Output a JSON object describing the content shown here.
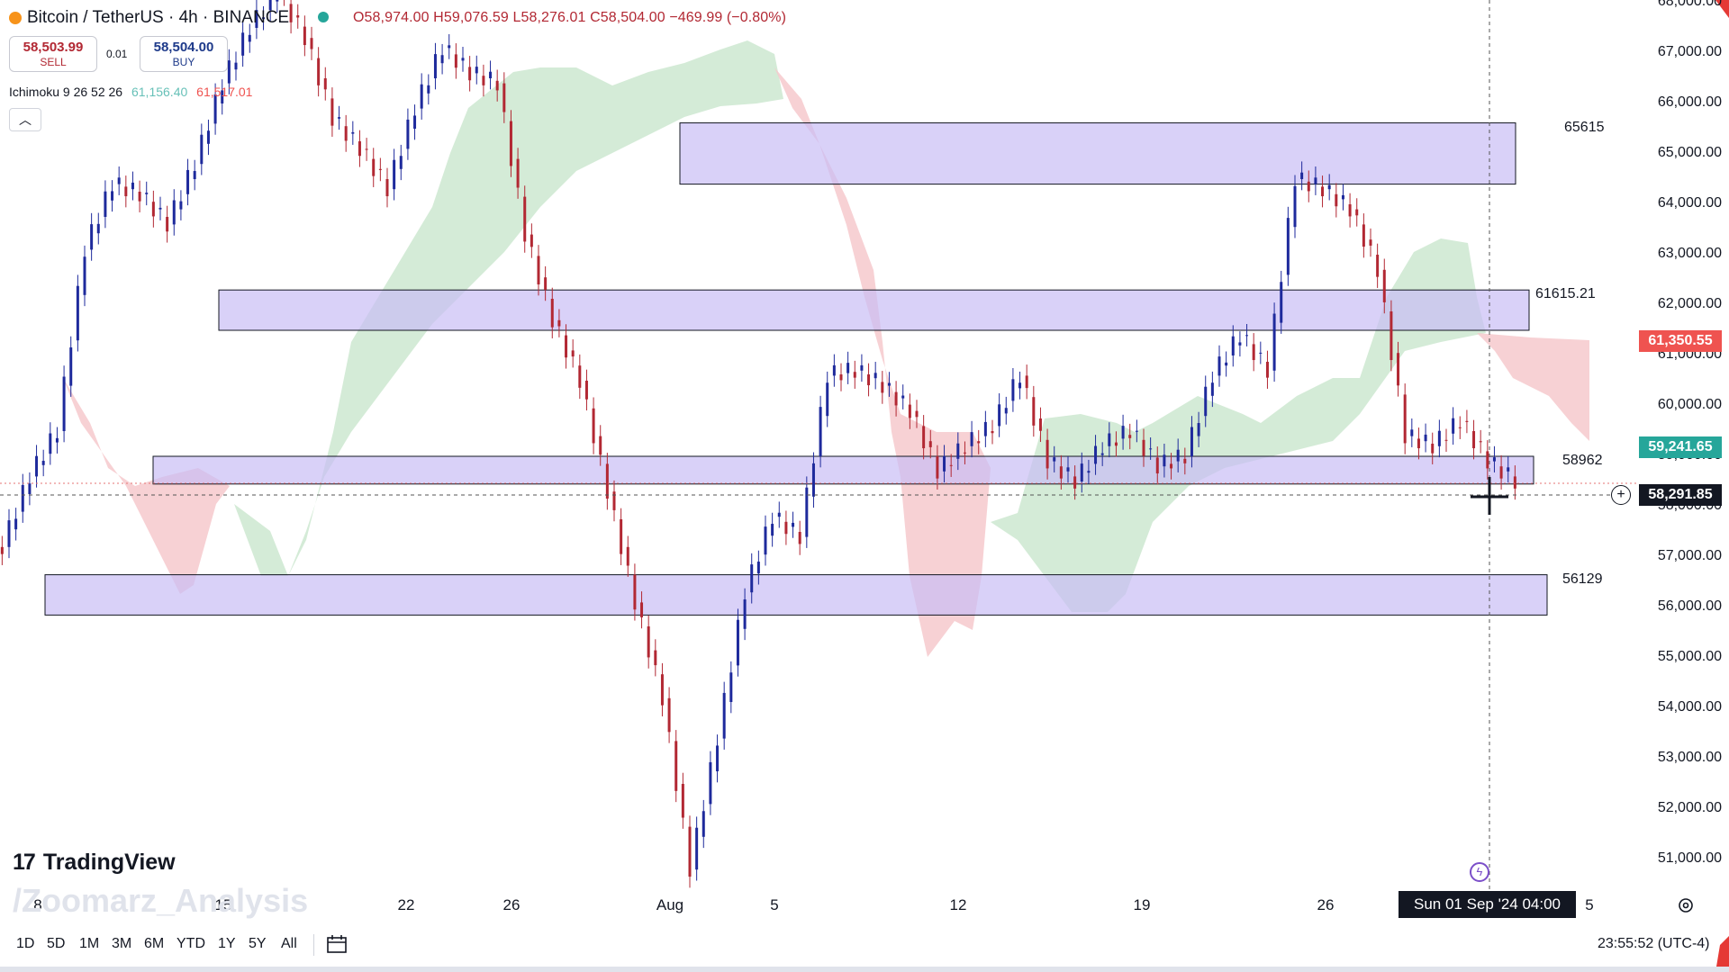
{
  "header": {
    "symbol": "Bitcoin / TetherUS · 4h · BINANCE",
    "ohlc": "O58,974.00 H59,076.59 L58,276.01 C58,504.00 −469.99 (−0.80%)"
  },
  "trade": {
    "sell_price": "58,503.99",
    "sell_label": "SELL",
    "spread": "0.01",
    "buy_price": "58,504.00",
    "buy_label": "BUY"
  },
  "indicator": {
    "name": "Ichimoku 9 26 52 26",
    "value1": "61,156.40",
    "value2": "61,517.01"
  },
  "price_axis": {
    "ticks": [
      "68,000.00",
      "67,000.00",
      "66,000.00",
      "65,000.00",
      "64,000.00",
      "63,000.00",
      "62,000.00",
      "61,000.00",
      "60,000.00",
      "59,000.00",
      "58,000.00",
      "57,000.00",
      "56,000.00",
      "55,000.00",
      "54,000.00",
      "53,000.00",
      "52,000.00",
      "51,000.00"
    ],
    "labels": [
      {
        "text": "61,350.55",
        "color": "#ef5350"
      },
      {
        "text": "59,241.65",
        "color": "#26a69a"
      },
      {
        "text": "58,291.85",
        "color": "#131722"
      }
    ]
  },
  "time_axis": {
    "ticks": [
      "8",
      "15",
      "22",
      "26",
      "Aug",
      "5",
      "12",
      "19",
      "26",
      "5"
    ],
    "crosshair_label": "Sun 01 Sep '24   04:00"
  },
  "zones": [
    {
      "label": "65615",
      "top": 65615,
      "bottom": 64400
    },
    {
      "label": "61615.21",
      "top": 62300,
      "bottom": 61500
    },
    {
      "label": "58962",
      "top": 59000,
      "bottom": 58450
    },
    {
      "label": "56129",
      "top": 56650,
      "bottom": 55850
    }
  ],
  "brand": {
    "logo_text": "TradingView",
    "watermark": "/Zoomarz_Analysis"
  },
  "ranges": [
    "1D",
    "5D",
    "1M",
    "3M",
    "6M",
    "YTD",
    "1Y",
    "5Y",
    "All"
  ],
  "clock": "23:55:52 (UTC-4)",
  "colors": {
    "up": "#1e2a9c",
    "down": "#b22833",
    "zone": "#d9d1f7",
    "cloud_green": "#cde8d0",
    "cloud_red": "#f6c9cd"
  },
  "chart_data": {
    "type": "candlestick",
    "title": "Bitcoin / TetherUS · 4h · BINANCE",
    "ylim": [
      50500,
      68000
    ],
    "y_reference_lines": [
      65615,
      61615.21,
      58962,
      56129
    ],
    "series": [
      {
        "name": "BTCUSDT",
        "close": [
          57200,
          58600,
          59500,
          63100,
          64400,
          64200,
          63600,
          64800,
          66400,
          67500,
          68200,
          67300,
          65700,
          65100,
          64300,
          65900,
          67100,
          66600,
          66400,
          63400,
          61700,
          60500,
          58300,
          56100,
          54200,
          50800,
          53400,
          56300,
          57800,
          57400,
          60600,
          60700,
          60400,
          59900,
          58700,
          59200,
          59600,
          60600,
          58900,
          58500,
          59200,
          59500,
          58800,
          59000,
          60600,
          61400,
          60700,
          64500,
          64300,
          63900,
          62700,
          59400,
          59200,
          59700,
          58900,
          58500
        ]
      }
    ]
  }
}
